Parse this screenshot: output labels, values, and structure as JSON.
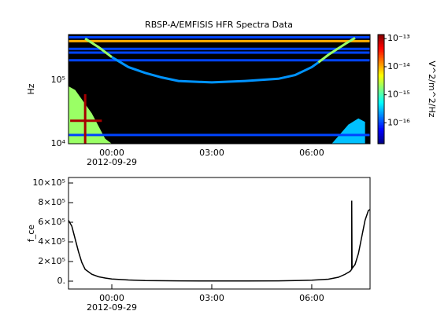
{
  "chart_data": [
    {
      "type": "spectrogram",
      "title": "RBSP-A/EMFISIS  HFR Spectra Data",
      "ylabel": "Hz",
      "xlim": [
        -1.3,
        7.75
      ],
      "xticks": [
        {
          "value": 0,
          "label": "00:00"
        },
        {
          "value": 3,
          "label": "03:00"
        },
        {
          "value": 6,
          "label": "06:00"
        }
      ],
      "x_sublabel": "2012-09-29",
      "ylim": [
        10000,
        520000
      ],
      "yscale": "log",
      "yticks": [
        {
          "value": 10000,
          "label": "10⁴"
        },
        {
          "value": 100000,
          "label": "10⁵"
        }
      ],
      "background": "#000000",
      "colorbar_label": "V^2/m^2/Hz",
      "zlim": [
        1.8e-17,
        1.4e-13
      ],
      "zscale": "log",
      "zticks": [
        {
          "value": 1e-13,
          "label": "10⁻¹³"
        },
        {
          "value": 1e-14,
          "label": "10⁻¹⁴"
        },
        {
          "value": 1e-15,
          "label": "10⁻¹⁵"
        },
        {
          "value": 1e-16,
          "label": "10⁻¹⁶"
        }
      ],
      "patches": [
        {
          "x": [
            -1.3,
            -1.3,
            -1.1,
            -0.6,
            -0.2,
            0
          ],
          "y": [
            10000,
            80000,
            70000,
            30000,
            12000,
            10000
          ],
          "z": 2e-15
        },
        {
          "x": [
            6.6,
            7.1,
            7.4,
            7.6,
            7.6
          ],
          "y": [
            10000,
            20000,
            25000,
            22000,
            10000
          ],
          "z": 3e-16
        }
      ],
      "traces": [
        {
          "x": [
            -1.3,
            7.75
          ],
          "y": [
            470000,
            470000
          ],
          "z": 1e-16
        },
        {
          "x": [
            -1.3,
            7.75
          ],
          "y": [
            410000,
            410000
          ],
          "z": 1e-14
        },
        {
          "x": [
            -1.3,
            7.75
          ],
          "y": [
            310000,
            310000
          ],
          "z": 1e-16
        },
        {
          "x": [
            -1.3,
            7.75
          ],
          "y": [
            270000,
            270000
          ],
          "z": 1e-16
        },
        {
          "x": [
            -1.3,
            7.75
          ],
          "y": [
            205000,
            205000
          ],
          "z": 1e-16
        },
        {
          "x": [
            -1.3,
            7.75
          ],
          "y": [
            13700,
            13700
          ],
          "z": 1e-16
        },
        {
          "x": [
            -0.8,
            -0.4,
            0
          ],
          "y": [
            450000,
            330000,
            230000
          ],
          "z": 2e-15
        },
        {
          "x": [
            0,
            0.5,
            1.0,
            1.5,
            2.0,
            3.0,
            4.0,
            5.0,
            5.5,
            6.0,
            6.2
          ],
          "y": [
            230000,
            160000,
            130000,
            110000,
            97000,
            92000,
            97000,
            105000,
            120000,
            160000,
            190000
          ],
          "z": 2e-16
        },
        {
          "x": [
            6.2,
            6.5,
            7.0,
            7.3
          ],
          "y": [
            190000,
            250000,
            370000,
            460000
          ],
          "z": 2e-15
        },
        {
          "x": [
            -0.8,
            -0.8
          ],
          "y": [
            10000,
            60000
          ],
          "z": 1e-13
        },
        {
          "x": [
            -1.25,
            -0.3
          ],
          "y": [
            23000,
            23000
          ],
          "z": 1e-13
        }
      ]
    },
    {
      "type": "line",
      "ylabel": "f_ce",
      "xlim": [
        -1.3,
        7.75
      ],
      "xticks": [
        {
          "value": 0,
          "label": "00:00"
        },
        {
          "value": 3,
          "label": "03:00"
        },
        {
          "value": 6,
          "label": "06:00"
        }
      ],
      "x_sublabel": "2012-09-29",
      "ylim": [
        -80000,
        1056000
      ],
      "yticks": [
        {
          "value": 0,
          "label": "0."
        },
        {
          "value": 200000,
          "label": "2×10⁵"
        },
        {
          "value": 400000,
          "label": "4×10⁵"
        },
        {
          "value": 600000,
          "label": "6×10⁵"
        },
        {
          "value": 800000,
          "label": "8×10⁵"
        },
        {
          "value": 1000000,
          "label": "10×10⁵"
        }
      ],
      "series": [
        {
          "color": "#000000",
          "x": [
            -1.3,
            -1.2,
            -1.1,
            -1.0,
            -0.9,
            -0.8,
            -0.6,
            -0.4,
            -0.2,
            0,
            0.5,
            1,
            2,
            3,
            4,
            5,
            5.5,
            6,
            6.5,
            6.8,
            7.0,
            7.15,
            7.2,
            7.2,
            7.21,
            7.3,
            7.4,
            7.5,
            7.6,
            7.7,
            7.75
          ],
          "values": [
            620000,
            560000,
            430000,
            300000,
            190000,
            120000,
            70000,
            45000,
            32000,
            22000,
            12000,
            6000,
            3000,
            2000,
            2000,
            3000,
            6000,
            10000,
            20000,
            40000,
            70000,
            100000,
            120000,
            820000,
            130000,
            170000,
            280000,
            450000,
            620000,
            720000,
            730000
          ]
        }
      ]
    }
  ]
}
